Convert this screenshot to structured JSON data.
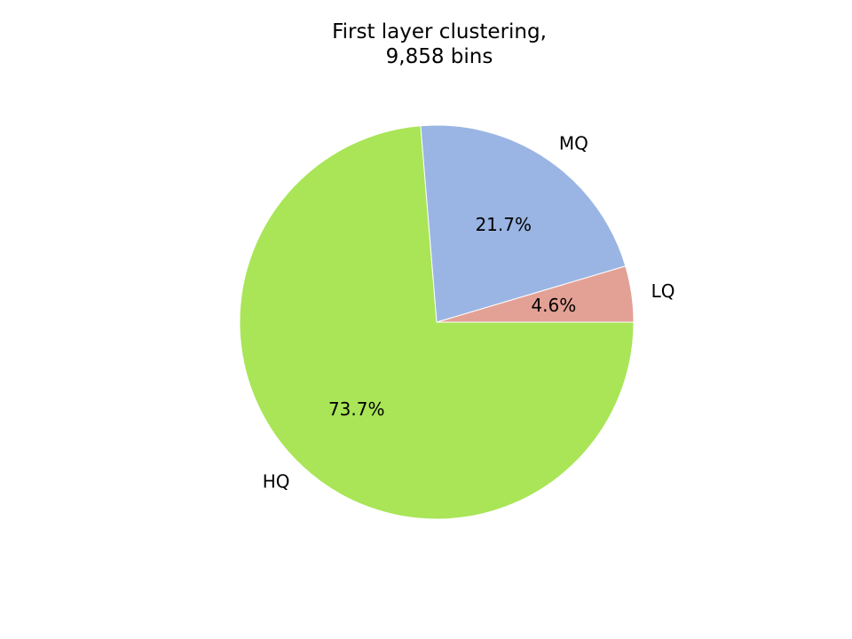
{
  "chart_data": {
    "type": "pie",
    "title": "First layer clustering,\n9,858 bins",
    "categories": [
      "LQ",
      "MQ",
      "HQ"
    ],
    "values": [
      4.6,
      21.7,
      73.7
    ],
    "percent_labels": [
      "4.6%",
      "21.7%",
      "73.7%"
    ],
    "colors": [
      "#e3a195",
      "#9ab5e3",
      "#a9e557"
    ],
    "start_angle_deg": 0,
    "direction": "counterclockwise",
    "slice_edge_color": "#ffffff"
  }
}
